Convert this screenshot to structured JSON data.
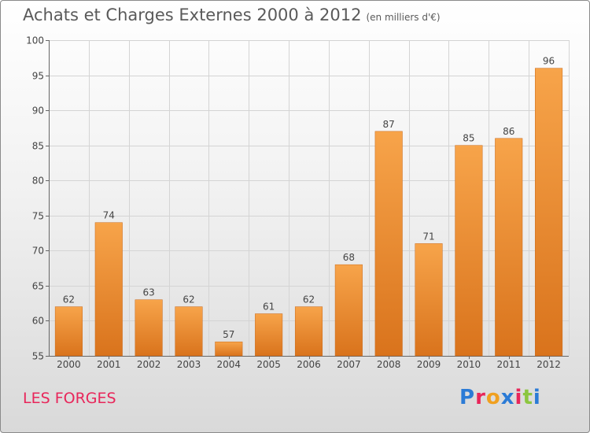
{
  "header": {
    "title": "Achats et Charges Externes 2000 à 2012",
    "subtitle": "(en milliers d'€)"
  },
  "footer": {
    "commune": "LES FORGES",
    "logo_text": "Proxiti",
    "logo_colors": [
      "#2b7bd6",
      "#e8265a",
      "#f0a020",
      "#2b7bd6",
      "#e8265a",
      "#8cc63f",
      "#2b7bd6"
    ]
  },
  "colors": {
    "bar_light": "#f7a44a",
    "bar_dark": "#d9731c",
    "grid": "#d4d4d4",
    "axis": "#666666",
    "text": "#444444"
  },
  "chart_data": {
    "type": "bar",
    "title": "Achats et Charges Externes 2000 à 2012",
    "subtitle": "(en milliers d'€)",
    "categories": [
      "2000",
      "2001",
      "2002",
      "2003",
      "2004",
      "2005",
      "2006",
      "2007",
      "2008",
      "2009",
      "2010",
      "2011",
      "2012"
    ],
    "values": [
      62,
      74,
      63,
      62,
      57,
      61,
      62,
      68,
      87,
      71,
      85,
      86,
      96
    ],
    "ylim": [
      55,
      100
    ],
    "yticks": [
      55,
      60,
      65,
      70,
      75,
      80,
      85,
      90,
      95,
      100
    ],
    "grid": true,
    "xlabel": "",
    "ylabel": ""
  }
}
